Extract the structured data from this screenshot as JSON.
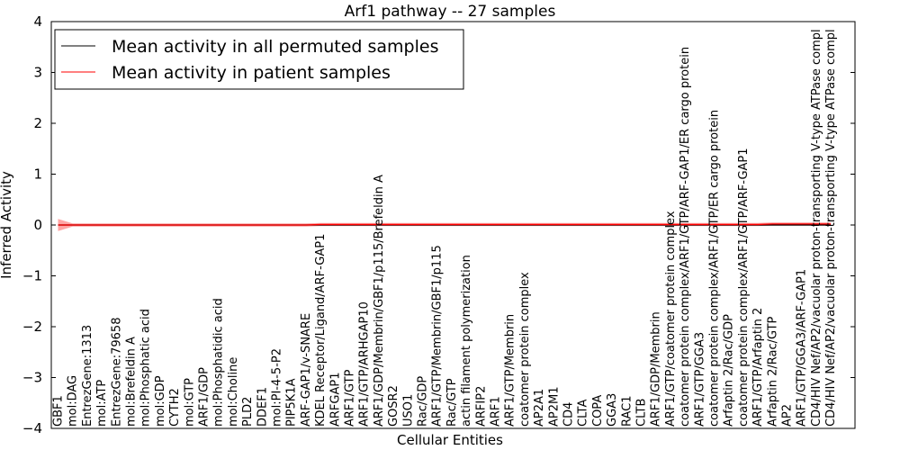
{
  "chart_data": {
    "type": "line",
    "title": "Arf1 pathway -- 27 samples",
    "xlabel": "Cellular Entities",
    "ylabel": "Inferred Activity",
    "ylim": [
      -4,
      4
    ],
    "yticks": [
      -4,
      -3,
      -2,
      -1,
      0,
      1,
      2,
      3,
      4
    ],
    "ytick_labels": [
      "−4",
      "−3",
      "−2",
      "−1",
      "0",
      "1",
      "2",
      "3",
      "4"
    ],
    "grid": false,
    "legend_position": "top-left",
    "categories": [
      "GBF1",
      "mol:DAG",
      "EntrezGene:1313",
      "mol:ATP",
      "EntrezGene:79658",
      "mol:Brefeldin A",
      "mol:Phosphatic acid",
      "mol:GDP",
      "CYTH2",
      "mol:GTP",
      "ARF1/GDP",
      "mol:Phosphatidic acid",
      "mol:Choline",
      "PLD2",
      "DDEF1",
      "mol:PI-4-5-P2",
      "PIP5K1A",
      "ARF-GAP1/v-SNARE",
      "KDEL Receptor/Ligand/ARF-GAP1",
      "ARFGAP1",
      "ARF1/GTP",
      "ARF1/GTP/ARHGAP10",
      "ARF1/GDP/Membrin/GBF1/p115/Brefeldin A",
      "GOSR2",
      "USO1",
      "Rac/GDP",
      "ARF1/GTP/Membrin/GBF1/p115",
      "Rac/GTP",
      "actin filament polymerization",
      "ARFIP2",
      "ARF1",
      "ARF1/GTP/Membrin",
      "coatomer protein complex",
      "AP2A1",
      "AP2M1",
      "CD4",
      "CLTA",
      "COPA",
      "GGA3",
      "RAC1",
      "CLTB",
      "ARF1/GDP/Membrin",
      "ARF1/GTP/coatomer protein complex",
      "coatomer protein complex/ARF1/GTP/ARF-GAP1/ER cargo protein",
      "ARF1/GTP/GGA3",
      "coatomer protein complex/ARF1/GTP/ER cargo protein",
      "Arfaptin 2/Rac/GDP",
      "coatomer protein complex/ARF1/GTP/ARF-GAP1",
      "ARF1/GTP/Arfaptin 2",
      "Arfaptin 2/Rac/GTP",
      "AP2",
      "ARF1/GTP/GGA3/ARF-GAP1",
      "CD4/HIV Nef/AP2/vacuolar proton-transporting V-type ATPase compl",
      "CD4/HIV Nef/AP2/vacuolar proton-transporting V-type ATPase compl"
    ],
    "series": [
      {
        "name": "Mean activity in all permuted samples",
        "color": "#000000",
        "values": [
          0,
          0,
          0,
          0,
          0,
          0,
          0,
          0,
          0,
          0,
          0,
          0,
          0,
          0,
          0,
          0,
          0,
          0,
          0,
          0,
          0,
          0,
          0,
          0,
          0,
          0,
          0,
          0,
          0,
          0,
          0,
          0,
          0,
          0,
          0,
          0,
          0,
          0,
          0,
          0,
          0,
          0,
          0,
          0,
          0,
          0,
          0,
          0,
          0,
          0,
          0,
          0,
          0,
          0
        ]
      },
      {
        "name": "Mean activity in patient samples",
        "color": "#ff0000",
        "values": [
          0,
          0,
          0,
          0,
          0,
          0,
          0,
          0,
          0,
          0,
          0,
          0,
          0,
          0,
          0,
          0,
          0,
          0,
          0.01,
          0.01,
          0.01,
          0.01,
          0.01,
          0.01,
          0.01,
          0.01,
          0.01,
          0.01,
          0.01,
          0.01,
          0.01,
          0.01,
          0.01,
          0.01,
          0.01,
          0.01,
          0.01,
          0.01,
          0.01,
          0.01,
          0.01,
          0.01,
          0.01,
          0.01,
          0.01,
          0.01,
          0.01,
          0.01,
          0.01,
          0.02,
          0.02,
          0.02,
          0.02,
          0.02
        ],
        "band": [
          0.12,
          0.03,
          0.03,
          0.03,
          0.03,
          0.03,
          0.03,
          0.03,
          0.03,
          0.03,
          0.03,
          0.03,
          0.03,
          0.03,
          0.03,
          0.03,
          0.03,
          0.03,
          0.03,
          0.03,
          0.03,
          0.03,
          0.03,
          0.03,
          0.03,
          0.03,
          0.03,
          0.03,
          0.03,
          0.03,
          0.03,
          0.03,
          0.03,
          0.03,
          0.03,
          0.03,
          0.03,
          0.03,
          0.03,
          0.03,
          0.03,
          0.03,
          0.03,
          0.03,
          0.03,
          0.03,
          0.03,
          0.03,
          0.03,
          0.03,
          0.03,
          0.03,
          0.03,
          0.03
        ]
      }
    ],
    "permuted_band_color": "#aaaaaa",
    "patient_band_color": "#ff0000"
  }
}
